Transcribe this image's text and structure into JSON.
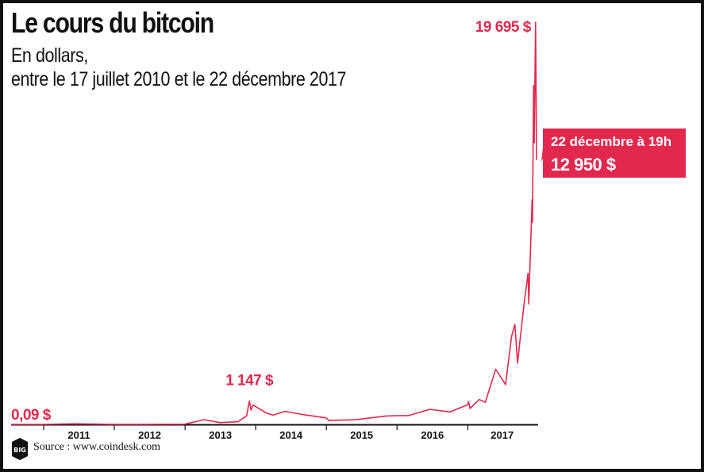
{
  "header": {
    "title": "Le cours du bitcoin",
    "subtitle_line1": "En dollars,",
    "subtitle_line2": "entre le 17 juillet 2010 et le 22 décembre 2017"
  },
  "chart_data": {
    "type": "line",
    "title": "Le cours du bitcoin",
    "subtitle": "En dollars, entre le 17 juillet 2010 et le 22 décembre 2017",
    "xlabel": "",
    "ylabel": "",
    "xlim": [
      "2010-07-17",
      "2017-12-22"
    ],
    "ylim": [
      0,
      19695
    ],
    "grid": false,
    "x_tick_labels": [
      "2011",
      "2012",
      "2013",
      "2014",
      "2015",
      "2016",
      "2017"
    ],
    "series": [
      {
        "color": "#e3284e",
        "points": [
          [
            "2010-07-17",
            0.09
          ],
          [
            "2011-01-01",
            0.3
          ],
          [
            "2011-06-08",
            30
          ],
          [
            "2011-12-31",
            5
          ],
          [
            "2012-06-01",
            5
          ],
          [
            "2012-12-31",
            13
          ],
          [
            "2013-04-09",
            230
          ],
          [
            "2013-07-01",
            90
          ],
          [
            "2013-10-01",
            130
          ],
          [
            "2013-11-15",
            420
          ],
          [
            "2013-11-29",
            1147
          ],
          [
            "2013-12-08",
            700
          ],
          [
            "2013-12-18",
            950
          ],
          [
            "2014-01-10",
            820
          ],
          [
            "2014-02-25",
            560
          ],
          [
            "2014-04-01",
            450
          ],
          [
            "2014-06-01",
            640
          ],
          [
            "2014-09-01",
            480
          ],
          [
            "2014-12-31",
            320
          ],
          [
            "2015-01-14",
            190
          ],
          [
            "2015-06-01",
            230
          ],
          [
            "2015-11-04",
            410
          ],
          [
            "2015-12-31",
            430
          ],
          [
            "2016-03-01",
            430
          ],
          [
            "2016-06-18",
            740
          ],
          [
            "2016-10-01",
            610
          ],
          [
            "2016-12-31",
            960
          ],
          [
            "2017-01-05",
            1120
          ],
          [
            "2017-01-12",
            780
          ],
          [
            "2017-03-01",
            1220
          ],
          [
            "2017-04-01",
            1080
          ],
          [
            "2017-05-25",
            2700
          ],
          [
            "2017-07-15",
            1950
          ],
          [
            "2017-08-15",
            4300
          ],
          [
            "2017-09-01",
            4900
          ],
          [
            "2017-09-15",
            3000
          ],
          [
            "2017-10-01",
            4400
          ],
          [
            "2017-10-20",
            6000
          ],
          [
            "2017-11-08",
            7400
          ],
          [
            "2017-11-12",
            5900
          ],
          [
            "2017-11-29",
            11000
          ],
          [
            "2017-12-01",
            9900
          ],
          [
            "2017-12-07",
            16600
          ],
          [
            "2017-12-10",
            13800
          ],
          [
            "2017-12-17",
            19695
          ],
          [
            "2017-12-20",
            16000
          ],
          [
            "2017-12-22",
            12950
          ]
        ]
      }
    ],
    "annotations": {
      "start": {
        "date": "2010-07-17",
        "value": 0.09,
        "label": "0,09 $"
      },
      "peak_2013": {
        "date": "2013-11-29",
        "value": 1147,
        "label": "1 147 $"
      },
      "peak_2017": {
        "date": "2017-12-17",
        "value": 19695,
        "label": "19 695 $"
      },
      "current": {
        "date": "2017-12-22",
        "value": 12950,
        "label_date": "22 décembre à 19h",
        "label_value": "12 950 $"
      }
    },
    "colors": {
      "line": "#e3284e",
      "callout_bg": "#e3284e",
      "axis": "#111111"
    }
  },
  "footer": {
    "logo_text": "BIG",
    "source": "Source : www.coindesk.com"
  }
}
